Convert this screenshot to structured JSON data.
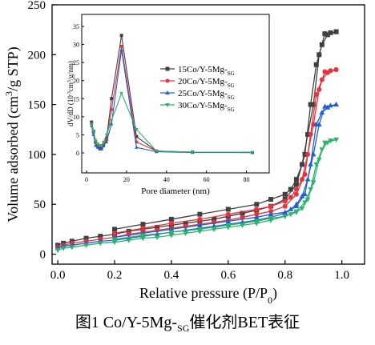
{
  "caption": {
    "prefix": "图1 Co/Y-5Mg-",
    "sub": "SG",
    "suffix": "催化剂BET表征"
  },
  "chart_data": [
    {
      "type": "line",
      "xlabel": "Relative pressure (P/P0)",
      "ylabel": "Volume adsorbed (cm3/g STP)",
      "xlim": [
        -0.02,
        1.08
      ],
      "ylim": [
        -10,
        250
      ],
      "xticks": [
        "0.0",
        "0.2",
        "0.4",
        "0.6",
        "0.8",
        "1.0"
      ],
      "xtick_values": [
        0,
        0.2,
        0.4,
        0.6,
        0.8,
        1.0
      ],
      "yticks": [
        "0",
        "50",
        "100",
        "150",
        "200",
        "250"
      ],
      "ytick_values": [
        0,
        50,
        100,
        150,
        200,
        250
      ],
      "series": [
        {
          "name": "15Co/Y-5Mg-SG",
          "color": "#404040",
          "marker": "square",
          "ads": [
            [
              0.0,
              9
            ],
            [
              0.02,
              11
            ],
            [
              0.05,
              13
            ],
            [
              0.1,
              16
            ],
            [
              0.15,
              18
            ],
            [
              0.2,
              20
            ],
            [
              0.25,
              23
            ],
            [
              0.3,
              25
            ],
            [
              0.35,
              27
            ],
            [
              0.4,
              29
            ],
            [
              0.45,
              31
            ],
            [
              0.5,
              33
            ],
            [
              0.55,
              35
            ],
            [
              0.6,
              38
            ],
            [
              0.65,
              41
            ],
            [
              0.7,
              44
            ],
            [
              0.75,
              48
            ],
            [
              0.8,
              55
            ],
            [
              0.84,
              70
            ],
            [
              0.87,
              100
            ],
            [
              0.89,
              150
            ],
            [
              0.91,
              190
            ],
            [
              0.93,
              210
            ],
            [
              0.95,
              220
            ],
            [
              0.98,
              223
            ]
          ],
          "des": [
            [
              0.98,
              223
            ],
            [
              0.96,
              222
            ],
            [
              0.94,
              221
            ],
            [
              0.92,
              200
            ],
            [
              0.9,
              150
            ],
            [
              0.88,
              120
            ],
            [
              0.86,
              90
            ],
            [
              0.84,
              75
            ],
            [
              0.82,
              65
            ],
            [
              0.8,
              60
            ],
            [
              0.75,
              55
            ],
            [
              0.7,
              50
            ],
            [
              0.6,
              45
            ],
            [
              0.5,
              40
            ],
            [
              0.4,
              35
            ],
            [
              0.3,
              30
            ],
            [
              0.2,
              25
            ]
          ]
        },
        {
          "name": "20Co/Y-5Mg-SG",
          "color": "#e8323c",
          "marker": "circle",
          "ads": [
            [
              0.0,
              7
            ],
            [
              0.02,
              9
            ],
            [
              0.05,
              11
            ],
            [
              0.1,
              13
            ],
            [
              0.15,
              15
            ],
            [
              0.2,
              17
            ],
            [
              0.25,
              20
            ],
            [
              0.3,
              22
            ],
            [
              0.35,
              24
            ],
            [
              0.4,
              26
            ],
            [
              0.45,
              28
            ],
            [
              0.5,
              30
            ],
            [
              0.55,
              32
            ],
            [
              0.6,
              34
            ],
            [
              0.65,
              37
            ],
            [
              0.7,
              40
            ],
            [
              0.75,
              43
            ],
            [
              0.8,
              48
            ],
            [
              0.84,
              60
            ],
            [
              0.87,
              80
            ],
            [
              0.89,
              120
            ],
            [
              0.91,
              160
            ],
            [
              0.93,
              175
            ],
            [
              0.95,
              182
            ],
            [
              0.98,
              185
            ]
          ],
          "des": [
            [
              0.98,
              185
            ],
            [
              0.96,
              184
            ],
            [
              0.94,
              183
            ],
            [
              0.92,
              165
            ],
            [
              0.9,
              130
            ],
            [
              0.88,
              100
            ],
            [
              0.86,
              75
            ],
            [
              0.84,
              65
            ],
            [
              0.82,
              57
            ],
            [
              0.8,
              53
            ],
            [
              0.75,
              48
            ],
            [
              0.7,
              45
            ],
            [
              0.6,
              40
            ],
            [
              0.5,
              35
            ],
            [
              0.4,
              31
            ],
            [
              0.3,
              26
            ],
            [
              0.2,
              21
            ]
          ]
        },
        {
          "name": "25Co/Y-5Mg-SG",
          "color": "#1f5fd0",
          "marker": "triangle-up",
          "ads": [
            [
              0.0,
              6
            ],
            [
              0.02,
              8
            ],
            [
              0.05,
              9
            ],
            [
              0.1,
              11
            ],
            [
              0.15,
              13
            ],
            [
              0.2,
              14
            ],
            [
              0.25,
              16
            ],
            [
              0.3,
              18
            ],
            [
              0.35,
              20
            ],
            [
              0.4,
              22
            ],
            [
              0.45,
              24
            ],
            [
              0.5,
              26
            ],
            [
              0.55,
              28
            ],
            [
              0.6,
              30
            ],
            [
              0.65,
              32
            ],
            [
              0.7,
              34
            ],
            [
              0.75,
              37
            ],
            [
              0.8,
              41
            ],
            [
              0.84,
              48
            ],
            [
              0.87,
              60
            ],
            [
              0.89,
              90
            ],
            [
              0.91,
              130
            ],
            [
              0.93,
              142
            ],
            [
              0.95,
              147
            ],
            [
              0.98,
              150
            ]
          ],
          "des": [
            [
              0.98,
              150
            ],
            [
              0.96,
              149
            ],
            [
              0.94,
              148
            ],
            [
              0.92,
              130
            ],
            [
              0.9,
              100
            ],
            [
              0.88,
              75
            ],
            [
              0.86,
              58
            ],
            [
              0.84,
              50
            ],
            [
              0.82,
              45
            ],
            [
              0.8,
              42
            ],
            [
              0.75,
              40
            ],
            [
              0.7,
              37
            ],
            [
              0.6,
              33
            ],
            [
              0.5,
              29
            ],
            [
              0.4,
              25
            ],
            [
              0.3,
              21
            ],
            [
              0.2,
              17
            ]
          ]
        },
        {
          "name": "30Co/Y-5Mg-SG",
          "color": "#2db36a",
          "marker": "triangle-down",
          "ads": [
            [
              0.0,
              4
            ],
            [
              0.02,
              6
            ],
            [
              0.05,
              7
            ],
            [
              0.1,
              9
            ],
            [
              0.15,
              11
            ],
            [
              0.2,
              12
            ],
            [
              0.25,
              14
            ],
            [
              0.3,
              16
            ],
            [
              0.35,
              17
            ],
            [
              0.4,
              19
            ],
            [
              0.45,
              21
            ],
            [
              0.5,
              23
            ],
            [
              0.55,
              25
            ],
            [
              0.6,
              27
            ],
            [
              0.65,
              29
            ],
            [
              0.7,
              31
            ],
            [
              0.75,
              34
            ],
            [
              0.8,
              38
            ],
            [
              0.84,
              43
            ],
            [
              0.87,
              52
            ],
            [
              0.89,
              65
            ],
            [
              0.91,
              90
            ],
            [
              0.93,
              105
            ],
            [
              0.95,
              112
            ],
            [
              0.98,
              115
            ]
          ],
          "des": [
            [
              0.98,
              115
            ],
            [
              0.96,
              114
            ],
            [
              0.94,
              112
            ],
            [
              0.92,
              95
            ],
            [
              0.9,
              72
            ],
            [
              0.88,
              55
            ],
            [
              0.86,
              46
            ],
            [
              0.84,
              42
            ],
            [
              0.82,
              40
            ],
            [
              0.8,
              38
            ],
            [
              0.75,
              36
            ],
            [
              0.7,
              33
            ],
            [
              0.6,
              29
            ],
            [
              0.5,
              25
            ],
            [
              0.4,
              22
            ],
            [
              0.3,
              19
            ],
            [
              0.2,
              15
            ]
          ]
        }
      ]
    },
    {
      "type": "line",
      "xlabel": "Pore diameter (nm)",
      "ylabel": "dV/dD (10-3cm3/g/nm)",
      "xlim": [
        0,
        85
      ],
      "ylim": [
        -2,
        35
      ],
      "xticks": [
        "0",
        "20",
        "40",
        "60",
        "80"
      ],
      "xtick_values": [
        0,
        20,
        40,
        60,
        80
      ],
      "yticks": [
        "0",
        "5",
        "10",
        "15",
        "20",
        "25",
        "30",
        "35"
      ],
      "ytick_values": [
        0,
        5,
        10,
        15,
        20,
        25,
        30,
        35
      ],
      "legend": "right",
      "series": [
        {
          "name": "15Co/Y-5Mg-SG",
          "color": "#404040",
          "marker": "square",
          "points": [
            [
              2.5,
              8.5
            ],
            [
              3.5,
              6
            ],
            [
              4.5,
              3
            ],
            [
              5.5,
              2
            ],
            [
              6.5,
              1.5
            ],
            [
              7.5,
              1.5
            ],
            [
              8.5,
              2
            ],
            [
              10,
              4
            ],
            [
              12.5,
              15
            ],
            [
              17.5,
              32.5
            ],
            [
              25,
              4.5
            ],
            [
              35,
              0.5
            ],
            [
              53,
              0.2
            ],
            [
              83,
              0.1
            ]
          ]
        },
        {
          "name": "20Co/Y-5Mg-SG",
          "color": "#e8323c",
          "marker": "circle",
          "points": [
            [
              2.5,
              8
            ],
            [
              3.5,
              5.5
            ],
            [
              4.5,
              3
            ],
            [
              5.5,
              2.5
            ],
            [
              6.5,
              2
            ],
            [
              7.5,
              2
            ],
            [
              8.5,
              2.5
            ],
            [
              10,
              3.5
            ],
            [
              12.5,
              12
            ],
            [
              17.5,
              29.5
            ],
            [
              25,
              3
            ],
            [
              35,
              0.5
            ],
            [
              53,
              0.2
            ],
            [
              83,
              0.1
            ]
          ]
        },
        {
          "name": "25Co/Y-5Mg-SG",
          "color": "#1f5fd0",
          "marker": "triangle-up",
          "points": [
            [
              2.5,
              7.5
            ],
            [
              3.5,
              5
            ],
            [
              4.5,
              2
            ],
            [
              5.5,
              1.5
            ],
            [
              6.5,
              1
            ],
            [
              7.5,
              1
            ],
            [
              8.5,
              2
            ],
            [
              10,
              3
            ],
            [
              12.5,
              8
            ],
            [
              17.5,
              28.5
            ],
            [
              25,
              1.5
            ],
            [
              35,
              0.3
            ],
            [
              53,
              0.1
            ],
            [
              83,
              0.1
            ]
          ]
        },
        {
          "name": "30Co/Y-5Mg-SG",
          "color": "#2db36a",
          "marker": "triangle-down",
          "points": [
            [
              2.5,
              8
            ],
            [
              3.5,
              6
            ],
            [
              4.5,
              3.5
            ],
            [
              5.5,
              2.5
            ],
            [
              6.5,
              2
            ],
            [
              7.5,
              2
            ],
            [
              8.5,
              3
            ],
            [
              10,
              5
            ],
            [
              12.5,
              9
            ],
            [
              17.5,
              16.5
            ],
            [
              25,
              6.5
            ],
            [
              35,
              0.5
            ],
            [
              53,
              0.2
            ],
            [
              83,
              0.2
            ]
          ]
        }
      ]
    }
  ]
}
